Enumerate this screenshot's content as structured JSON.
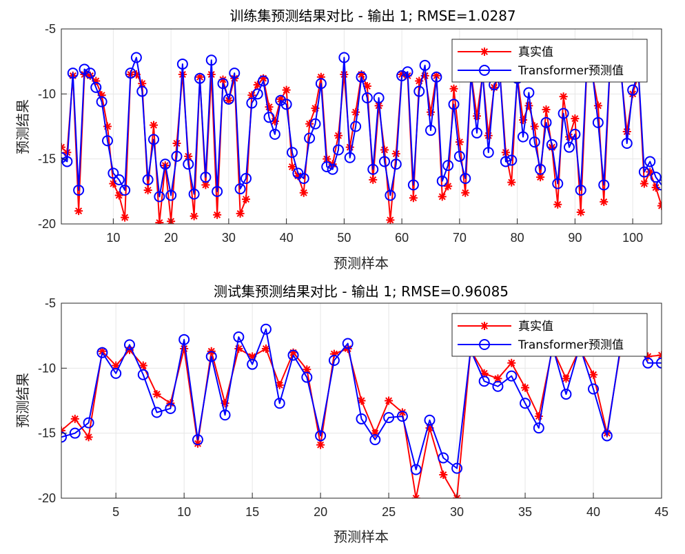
{
  "chart_data": [
    {
      "type": "line",
      "title": "训练集预测结果对比 - 输出 1; RMSE=1.0287",
      "xlabel": "预测样本",
      "ylabel": "预测结果",
      "xlim": [
        1,
        105
      ],
      "ylim": [
        -20,
        -5
      ],
      "xticks": [
        10,
        20,
        30,
        40,
        50,
        60,
        70,
        80,
        90,
        100
      ],
      "xtick_labels": [
        "10",
        "20",
        "30",
        "40",
        "50",
        "60",
        "70",
        "80",
        "90",
        "100"
      ],
      "yticks": [
        -20,
        -15,
        -10,
        -5
      ],
      "ytick_labels": [
        "-20",
        "-15",
        "-10",
        "-5"
      ],
      "grid": true,
      "legend_position": "top-right",
      "series": [
        {
          "name": "真实值",
          "color": "#ff0000",
          "marker": "asterisk",
          "values": [
            -14.1,
            -14.5,
            -8.6,
            -19.0,
            -8.5,
            -8.6,
            -9.0,
            -10.1,
            -12.5,
            -16.9,
            -17.8,
            -19.5,
            -8.5,
            -8.5,
            -9.2,
            -17.4,
            -12.4,
            -19.9,
            -15.5,
            -19.8,
            -13.8,
            -8.5,
            -14.8,
            -19.4,
            -8.7,
            -17.0,
            -8.5,
            -19.3,
            -8.9,
            -10.5,
            -8.8,
            -19.2,
            -18.1,
            -10.1,
            -9.3,
            -8.8,
            -11.0,
            -12.1,
            -10.4,
            -9.7,
            -15.6,
            -16.3,
            -17.6,
            -12.3,
            -11.1,
            -8.7,
            -15.0,
            -15.4,
            -13.2,
            -8.5,
            -14.1,
            -11.4,
            -8.5,
            -9.4,
            -16.6,
            -10.9,
            -14.3,
            -19.7,
            -14.6,
            -8.5,
            -8.6,
            -18.0,
            -9.0,
            -8.6,
            -11.4,
            -8.6,
            -17.9,
            -17.1,
            -9.6,
            -13.7,
            -17.6,
            -8.5,
            -11.7,
            -8.5,
            -13.2,
            -9.5,
            -8.5,
            -14.5,
            -16.8,
            -8.6,
            -12.0,
            -10.9,
            -12.5,
            -16.4,
            -11.2,
            -14.1,
            -18.5,
            -10.2,
            -13.3,
            -11.9,
            -19.1,
            -8.5,
            -8.5,
            -10.9,
            -18.3,
            -8.5,
            -8.5,
            -8.5,
            -12.9,
            -10.0,
            -8.5,
            -16.9,
            -16.0,
            -17.2,
            -18.6
          ]
        },
        {
          "name": "Transformer预测值",
          "color": "#0000ff",
          "marker": "circle",
          "values": [
            -14.9,
            -15.2,
            -8.4,
            -17.4,
            -8.1,
            -8.4,
            -9.5,
            -10.6,
            -13.6,
            -16.1,
            -16.6,
            -17.4,
            -8.4,
            -7.2,
            -9.8,
            -16.6,
            -13.5,
            -17.9,
            -15.4,
            -17.8,
            -14.8,
            -7.7,
            -15.4,
            -17.7,
            -8.8,
            -16.4,
            -7.4,
            -17.5,
            -9.2,
            -10.4,
            -8.4,
            -17.3,
            -16.5,
            -10.7,
            -10.0,
            -9.0,
            -11.8,
            -13.1,
            -10.5,
            -10.8,
            -14.5,
            -16.1,
            -16.5,
            -13.4,
            -12.3,
            -9.2,
            -15.6,
            -15.8,
            -14.3,
            -7.2,
            -14.9,
            -12.5,
            -8.7,
            -10.3,
            -15.8,
            -10.3,
            -15.2,
            -17.8,
            -15.4,
            -8.6,
            -8.3,
            -17.0,
            -9.8,
            -7.8,
            -12.8,
            -8.7,
            -16.7,
            -15.5,
            -10.8,
            -14.8,
            -16.5,
            -8.5,
            -13.0,
            -8.4,
            -14.5,
            -9.3,
            -8.5,
            -15.2,
            -15.1,
            -8.8,
            -13.3,
            -9.9,
            -13.7,
            -15.8,
            -12.2,
            -13.9,
            -16.9,
            -11.5,
            -14.1,
            -13.1,
            -17.4,
            -8.2,
            -8.3,
            -12.2,
            -17.0,
            -8.3,
            -8.3,
            -8.3,
            -13.8,
            -9.7,
            -8.3,
            -16.0,
            -15.2,
            -16.4,
            -17.0
          ]
        }
      ]
    },
    {
      "type": "line",
      "title": "测试集预测结果对比 - 输出 1; RMSE=0.96085",
      "xlabel": "预测样本",
      "ylabel": "预测结果",
      "xlim": [
        1,
        45
      ],
      "ylim": [
        -20,
        -5
      ],
      "xticks": [
        5,
        10,
        15,
        20,
        25,
        30,
        35,
        40,
        45
      ],
      "xtick_labels": [
        "5",
        "10",
        "15",
        "20",
        "25",
        "30",
        "35",
        "40",
        "45"
      ],
      "yticks": [
        -20,
        -15,
        -10,
        -5
      ],
      "ytick_labels": [
        "-20",
        "-15",
        "-10",
        "-5"
      ],
      "grid": true,
      "legend_position": "top-right",
      "series": [
        {
          "name": "真实值",
          "color": "#ff0000",
          "marker": "asterisk",
          "values": [
            -14.8,
            -13.9,
            -15.3,
            -8.7,
            -9.8,
            -8.6,
            -9.8,
            -12.0,
            -12.7,
            -8.5,
            -15.8,
            -8.7,
            -12.7,
            -8.5,
            -9.1,
            -8.5,
            -11.3,
            -8.8,
            -10.1,
            -15.9,
            -8.9,
            -8.5,
            -12.5,
            -15.0,
            -12.5,
            -13.4,
            -20.0,
            -14.6,
            -18.2,
            -20.0,
            -8.6,
            -10.4,
            -10.8,
            -9.6,
            -11.5,
            -13.7,
            -8.5,
            -10.8,
            -8.5,
            -10.5,
            -15.0,
            -8.5,
            -8.5,
            -9.1,
            -9.0
          ]
        },
        {
          "name": "Transformer预测值",
          "color": "#0000ff",
          "marker": "circle",
          "values": [
            -15.3,
            -15.0,
            -14.2,
            -8.8,
            -10.4,
            -8.2,
            -10.5,
            -13.4,
            -13.1,
            -7.8,
            -15.5,
            -9.1,
            -13.6,
            -7.6,
            -9.7,
            -7.0,
            -12.7,
            -9.0,
            -10.7,
            -15.2,
            -9.4,
            -8.1,
            -13.9,
            -15.5,
            -13.8,
            -13.7,
            -17.8,
            -14.0,
            -16.9,
            -17.7,
            -8.6,
            -11.0,
            -11.4,
            -10.6,
            -12.7,
            -14.6,
            -8.3,
            -12.0,
            -8.3,
            -11.6,
            -15.2,
            -8.3,
            -7.5,
            -9.6,
            -9.6
          ]
        }
      ]
    }
  ]
}
